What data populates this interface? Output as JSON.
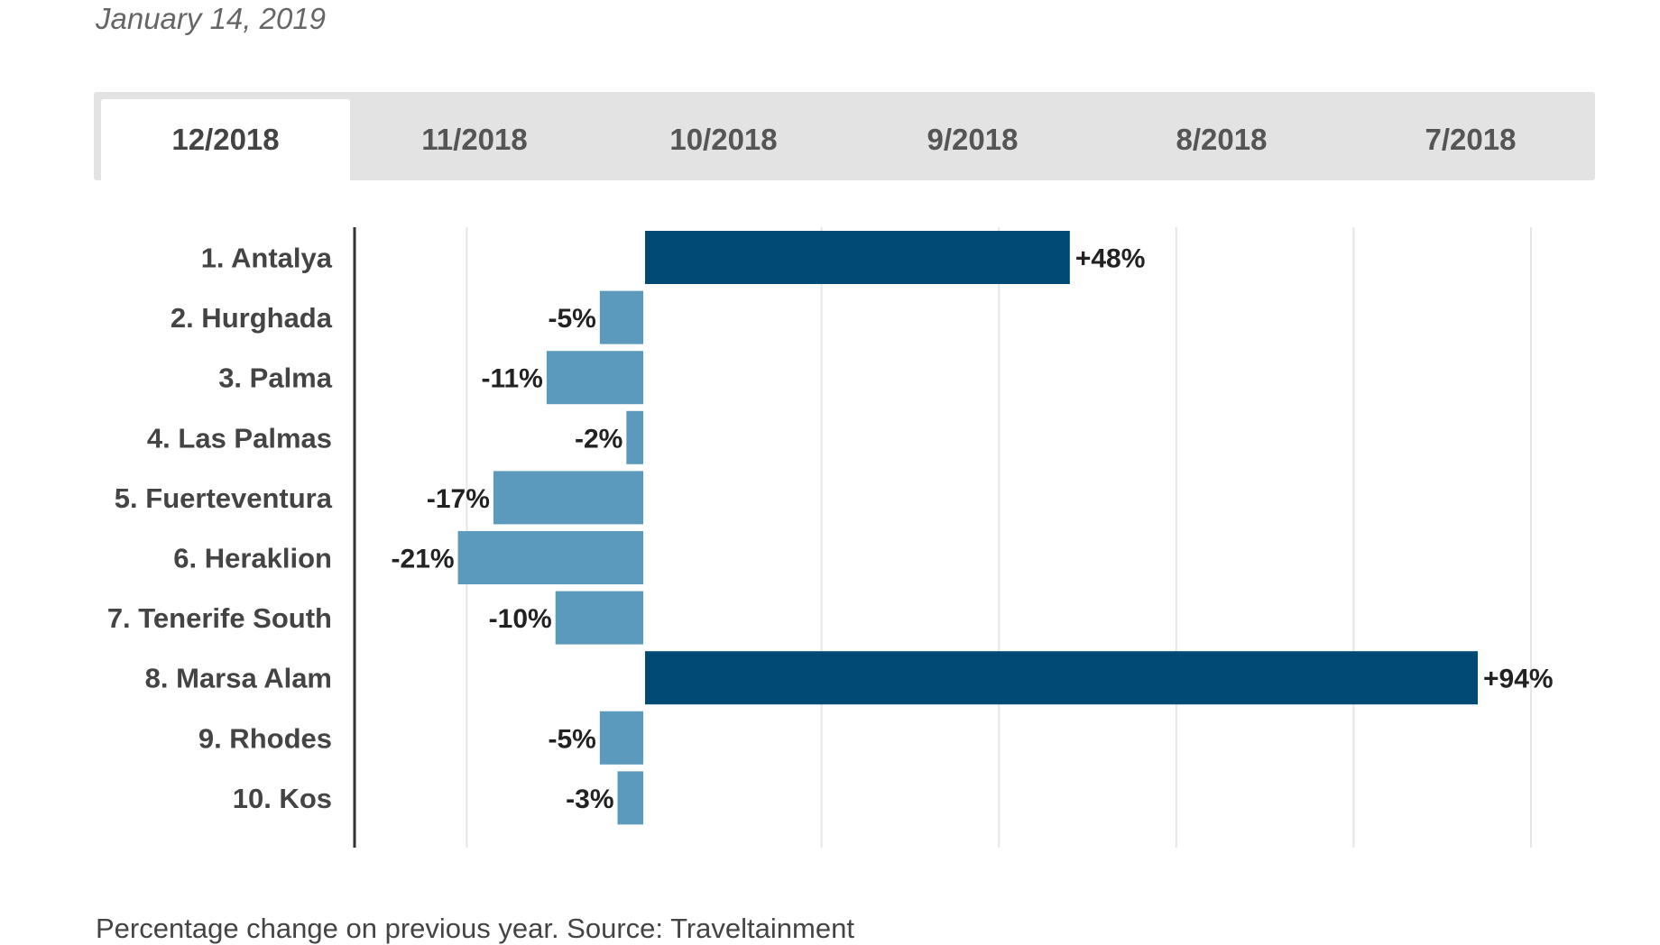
{
  "date": "January 14, 2019",
  "tabs": [
    {
      "label": "12/2018",
      "active": true
    },
    {
      "label": "11/2018",
      "active": false
    },
    {
      "label": "10/2018",
      "active": false
    },
    {
      "label": "9/2018",
      "active": false
    },
    {
      "label": "8/2018",
      "active": false
    },
    {
      "label": "7/2018",
      "active": false
    }
  ],
  "footnote": "Percentage change on previous year. Source: Traveltainment",
  "chart_data": {
    "type": "bar",
    "orientation": "horizontal",
    "categories": [
      "1. Antalya",
      "2. Hurghada",
      "3. Palma",
      "4. Las Palmas",
      "5. Fuerteventura",
      "6. Heraklion",
      "7. Tenerife South",
      "8. Marsa Alam",
      "9. Rhodes",
      "10. Kos"
    ],
    "values": [
      48,
      -5,
      -11,
      -2,
      -17,
      -21,
      -10,
      94,
      -5,
      -3
    ],
    "data_labels": [
      "+48%",
      "-5%",
      "-11%",
      "-2%",
      "-17%",
      "-21%",
      "-10%",
      "+94%",
      "-5%",
      "-3%"
    ],
    "xlim": [
      -32,
      100
    ],
    "gridlines": [
      -20,
      0,
      20,
      40,
      60,
      80,
      100
    ],
    "grid": true,
    "colors": {
      "positive": "#004a76",
      "negative": "#5b9abc",
      "axis": "#333333",
      "grid": "#e6e6e6"
    }
  }
}
